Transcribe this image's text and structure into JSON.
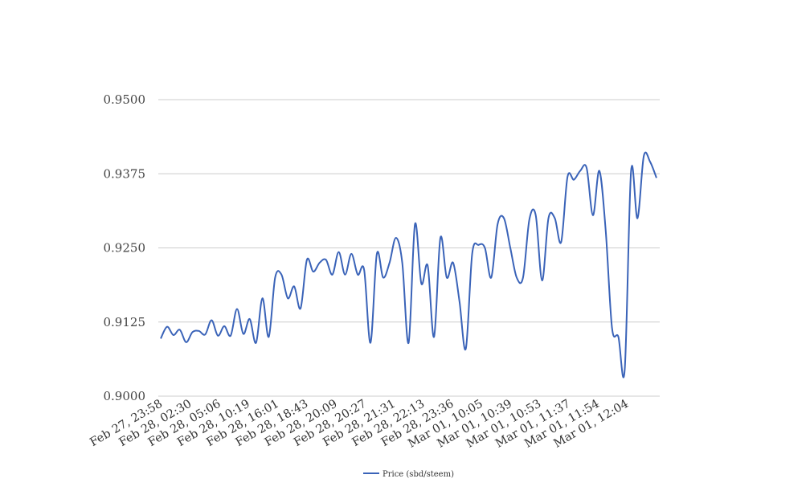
{
  "chart_data": {
    "type": "line",
    "title": "",
    "xlabel": "",
    "ylabel": "",
    "ylim": [
      0.9,
      0.95
    ],
    "yticks": [
      "0.9000",
      "0.9125",
      "0.9250",
      "0.9375",
      "0.9500"
    ],
    "grid": true,
    "legend_position": "bottom",
    "x_tick_labels": [
      "Feb 27, 23:58",
      "Feb 28, 02:30",
      "Feb 28, 05:06",
      "Feb 28, 10:19",
      "Feb 28, 16:01",
      "Feb 28, 18:43",
      "Feb 28, 20:09",
      "Feb 28, 20:27",
      "Feb 28, 21:31",
      "Feb 28, 22:13",
      "Feb 28, 23:36",
      "Mar 01, 10:05",
      "Mar 01, 10:39",
      "Mar 01, 10:53",
      "Mar 01, 11:37",
      "Mar 01, 11:54",
      "Mar 01, 12:04"
    ],
    "series": [
      {
        "name": "Price (sbd/steem)",
        "color": "#3a63b8",
        "values": [
          0.9097,
          0.9117,
          0.9103,
          0.9112,
          0.9091,
          0.9108,
          0.911,
          0.9104,
          0.9128,
          0.9102,
          0.9118,
          0.9102,
          0.9147,
          0.9105,
          0.913,
          0.909,
          0.9165,
          0.91,
          0.92,
          0.9205,
          0.9165,
          0.9185,
          0.9148,
          0.923,
          0.921,
          0.9225,
          0.923,
          0.9205,
          0.9243,
          0.9205,
          0.924,
          0.9205,
          0.9213,
          0.909,
          0.924,
          0.92,
          0.9225,
          0.9267,
          0.9225,
          0.909,
          0.929,
          0.919,
          0.922,
          0.91,
          0.9267,
          0.92,
          0.9225,
          0.916,
          0.908,
          0.924,
          0.9255,
          0.925,
          0.92,
          0.929,
          0.93,
          0.925,
          0.92,
          0.92,
          0.9298,
          0.9305,
          0.9195,
          0.93,
          0.93,
          0.926,
          0.937,
          0.9365,
          0.938,
          0.9385,
          0.9305,
          0.938,
          0.928,
          0.9115,
          0.91,
          0.9045,
          0.938,
          0.93,
          0.9405,
          0.9395,
          0.9368
        ]
      }
    ]
  }
}
